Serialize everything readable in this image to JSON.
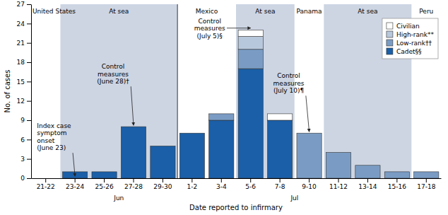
{
  "chart_data": {
    "type": "bar",
    "stacked": true,
    "categories": [
      "21-22",
      "23-24",
      "25-26",
      "27-28",
      "29-30",
      "1-2",
      "3-4",
      "5-6",
      "7-8",
      "9-10",
      "11-12",
      "13-14",
      "15-16",
      "17-18"
    ],
    "series": [
      {
        "name": "Cadet§§",
        "color": "#1a5fa8",
        "values": [
          0,
          1,
          1,
          8,
          5,
          7,
          9,
          17,
          9,
          0,
          0,
          0,
          0,
          0
        ]
      },
      {
        "name": "Low-rank††",
        "color": "#7a9cc4",
        "values": [
          0,
          0,
          0,
          0,
          0,
          0,
          1,
          3,
          0,
          7,
          4,
          2,
          1,
          1
        ]
      },
      {
        "name": "High-rank**",
        "color": "#b8c8dc",
        "values": [
          0,
          0,
          0,
          0,
          0,
          0,
          0,
          2,
          0,
          0,
          0,
          0,
          0,
          0
        ]
      },
      {
        "name": "Civilian",
        "color": "#ffffff",
        "values": [
          0,
          0,
          0,
          0,
          0,
          0,
          0,
          1,
          1,
          0,
          0,
          0,
          0,
          0
        ]
      }
    ],
    "ylim": [
      0,
      27
    ],
    "yticks": [
      0,
      3,
      6,
      9,
      12,
      15,
      18,
      21,
      24,
      27
    ],
    "ylabel": "No. of cases",
    "xlabel": "Date reported to infirmary",
    "grid": false,
    "legend": "upper right",
    "regions": [
      {
        "label": "United States",
        "from": "21-22",
        "to": "21-22",
        "color": "#ffffff"
      },
      {
        "label": "At sea",
        "from": "23-24",
        "to": "29-30",
        "color": "#cdd5e3"
      },
      {
        "label": "Mexico",
        "from": "1-2",
        "to": "3-4",
        "color": "#ffffff"
      },
      {
        "label": "At sea",
        "from": "5-6",
        "to": "7-8",
        "color": "#cdd5e3"
      },
      {
        "label": "Panama",
        "from": "9-10",
        "to": "9-10",
        "color": "#ffffff"
      },
      {
        "label": "At sea",
        "from": "11-12",
        "to": "15-16",
        "color": "#cdd5e3"
      },
      {
        "label": "Peru",
        "from": "17-18",
        "to": "17-18",
        "color": "#ffffff"
      }
    ],
    "month_labels": [
      {
        "label": "Jun",
        "from": "23-24",
        "to": "29-30"
      },
      {
        "label": "Jul",
        "from": "7-8",
        "to": "9-10"
      }
    ],
    "annotations": [
      {
        "text": "Index case\nsymptom\nonset\n(June 23)",
        "category": "23-24",
        "y": 0.3
      },
      {
        "text": "Control\nmeasures\n(June 28)†",
        "category": "27-28",
        "y": 8.2
      },
      {
        "text": "Control\nmeasures\n(July 5)§",
        "category": "5-6",
        "y": 23.3
      },
      {
        "text": "Control\nmeasures\n(July 10)¶",
        "category": "9-10",
        "y": 7.2
      }
    ]
  }
}
